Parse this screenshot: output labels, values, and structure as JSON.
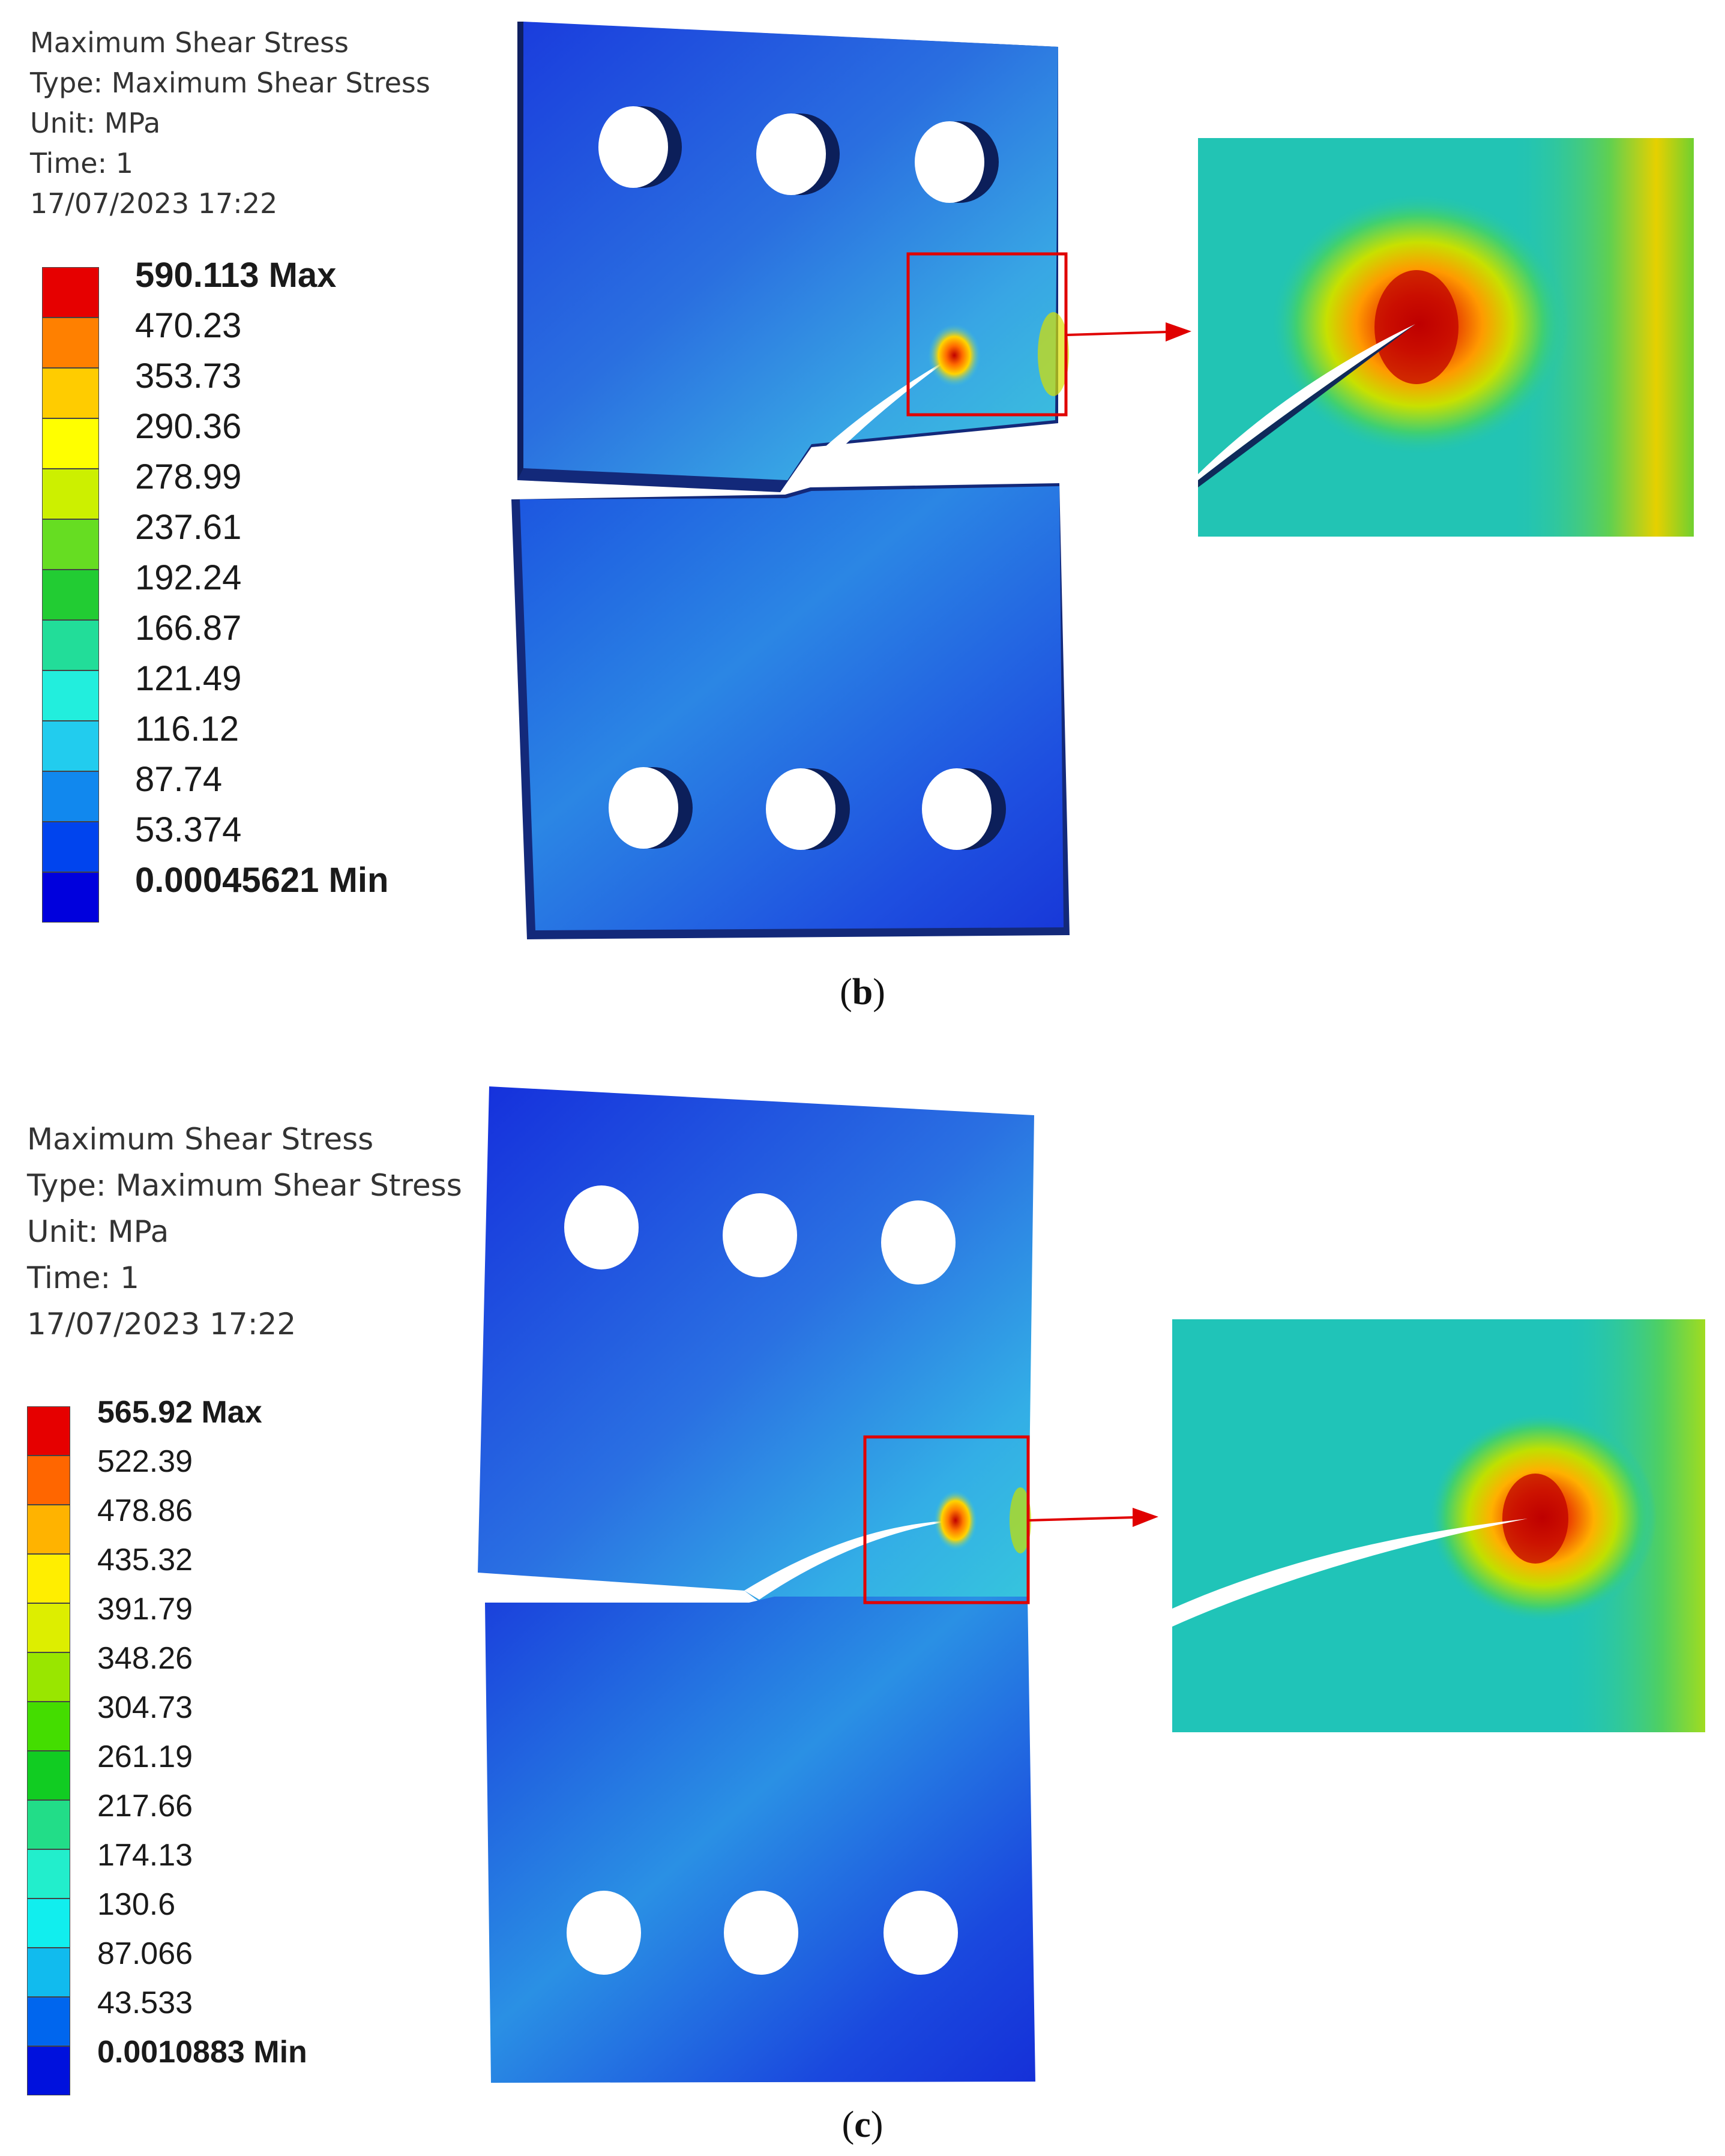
{
  "panel_b": {
    "info": {
      "title": "Maximum Shear Stress",
      "type": "Type: Maximum Shear Stress",
      "unit": "Unit: MPa",
      "time": "Time: 1",
      "date": "17/07/2023 17:22"
    },
    "legend": {
      "labels": [
        "590.113 Max",
        "470.23",
        "353.73",
        "290.36",
        "278.99",
        "237.61",
        "192.24",
        "166.87",
        "121.49",
        "116.12",
        "87.74",
        "53.374",
        "0.00045621 Min"
      ],
      "colors": [
        "#e60000",
        "#ff8000",
        "#ffcc00",
        "#ffff00",
        "#ccf000",
        "#66dd22",
        "#22cc33",
        "#22dd99",
        "#22eedd",
        "#22ccee",
        "#1188ee",
        "#0044ee",
        "#0000dd"
      ]
    },
    "caption_letter": "b"
  },
  "panel_c": {
    "info": {
      "title": "Maximum Shear Stress",
      "type": "Type: Maximum Shear Stress",
      "unit": "Unit: MPa",
      "time": "Time: 1",
      "date": "17/07/2023 17:22"
    },
    "legend": {
      "labels": [
        "565.92 Max",
        "522.39",
        "478.86",
        "435.32",
        "391.79",
        "348.26",
        "304.73",
        "261.19",
        "217.66",
        "174.13",
        "130.6",
        "87.066",
        "43.533",
        "0.0010883 Min"
      ],
      "colors": [
        "#e60000",
        "#ff6600",
        "#ffb300",
        "#ffee00",
        "#ddee00",
        "#99e600",
        "#44dd00",
        "#11cc22",
        "#22dd88",
        "#22eecc",
        "#11eeee",
        "#11bbee",
        "#0066ee",
        "#0011dd"
      ]
    },
    "caption_letter": "c"
  }
}
